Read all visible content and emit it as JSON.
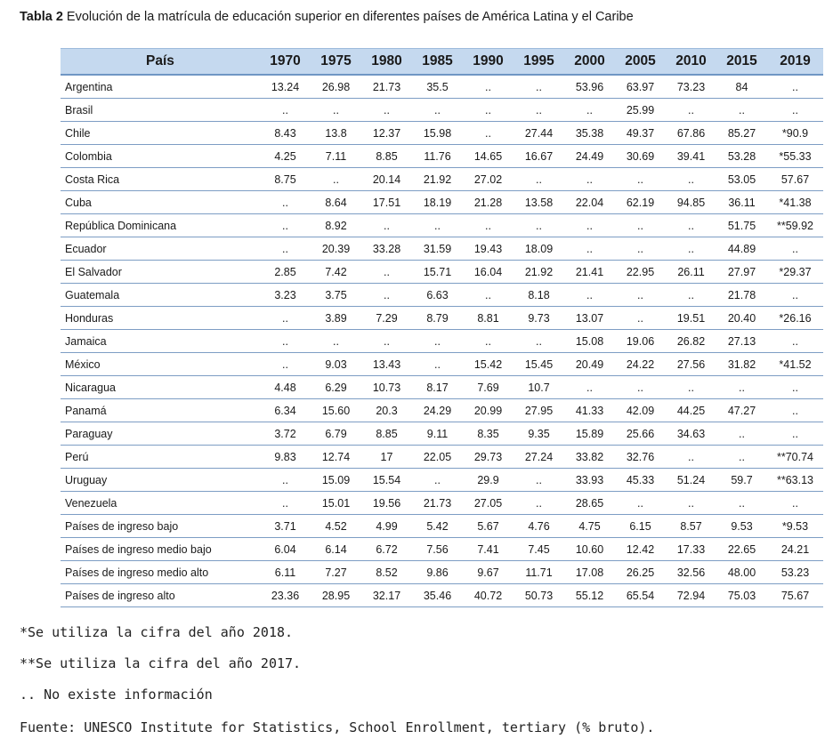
{
  "caption": {
    "label": "Tabla 2",
    "text": " Evolución de la matrícula de educación superior en diferentes países de América Latina y el Caribe"
  },
  "table": {
    "headers": [
      "País",
      "1970",
      "1975",
      "1980",
      "1985",
      "1990",
      "1995",
      "2000",
      "2005",
      "2010",
      "2015",
      "2019"
    ],
    "rows": [
      [
        "Argentina",
        "13.24",
        "26.98",
        "21.73",
        "35.5",
        "..",
        "..",
        "53.96",
        "63.97",
        "73.23",
        "84",
        ".."
      ],
      [
        "Brasil",
        "..",
        "..",
        "..",
        "..",
        "..",
        "..",
        "..",
        "25.99",
        "..",
        "..",
        ".."
      ],
      [
        "Chile",
        "8.43",
        "13.8",
        "12.37",
        "15.98",
        "..",
        "27.44",
        "35.38",
        "49.37",
        "67.86",
        "85.27",
        "*90.9"
      ],
      [
        "Colombia",
        "4.25",
        "7.11",
        "8.85",
        "11.76",
        "14.65",
        "16.67",
        "24.49",
        "30.69",
        "39.41",
        "53.28",
        "*55.33"
      ],
      [
        "Costa Rica",
        "8.75",
        "..",
        "20.14",
        "21.92",
        "27.02",
        "..",
        "..",
        "..",
        "..",
        "53.05",
        "57.67"
      ],
      [
        "Cuba",
        "..",
        "8.64",
        "17.51",
        "18.19",
        "21.28",
        "13.58",
        "22.04",
        "62.19",
        "94.85",
        "36.11",
        "*41.38"
      ],
      [
        "República Dominicana",
        "..",
        "8.92",
        "..",
        "..",
        "..",
        "..",
        "..",
        "..",
        "..",
        "51.75",
        "**59.92"
      ],
      [
        "Ecuador",
        "..",
        "20.39",
        "33.28",
        "31.59",
        "19.43",
        "18.09",
        "..",
        "..",
        "..",
        "44.89",
        ".."
      ],
      [
        "El Salvador",
        "2.85",
        "7.42",
        "..",
        "15.71",
        "16.04",
        "21.92",
        "21.41",
        "22.95",
        "26.11",
        "27.97",
        "*29.37"
      ],
      [
        "Guatemala",
        "3.23",
        "3.75",
        "..",
        "6.63",
        "..",
        "8.18",
        "..",
        "..",
        "..",
        "21.78",
        ".."
      ],
      [
        "Honduras",
        "..",
        "3.89",
        "7.29",
        "8.79",
        "8.81",
        "9.73",
        "13.07",
        "..",
        "19.51",
        "20.40",
        "*26.16"
      ],
      [
        "Jamaica",
        "..",
        "..",
        "..",
        "..",
        "..",
        "..",
        "15.08",
        "19.06",
        "26.82",
        "27.13",
        ".."
      ],
      [
        "México",
        "..",
        "9.03",
        "13.43",
        "..",
        "15.42",
        "15.45",
        "20.49",
        "24.22",
        "27.56",
        "31.82",
        "*41.52"
      ],
      [
        "Nicaragua",
        "4.48",
        "6.29",
        "10.73",
        "8.17",
        "7.69",
        "10.7",
        "..",
        "..",
        "..",
        "..",
        ".."
      ],
      [
        "Panamá",
        "6.34",
        "15.60",
        "20.3",
        "24.29",
        "20.99",
        "27.95",
        "41.33",
        "42.09",
        "44.25",
        "47.27",
        ".."
      ],
      [
        "Paraguay",
        "3.72",
        "6.79",
        "8.85",
        "9.11",
        "8.35",
        "9.35",
        "15.89",
        "25.66",
        "34.63",
        "..",
        ".."
      ],
      [
        "Perú",
        "9.83",
        "12.74",
        "17",
        "22.05",
        "29.73",
        "27.24",
        "33.82",
        "32.76",
        "..",
        "..",
        "**70.74"
      ],
      [
        "Uruguay",
        "..",
        "15.09",
        "15.54",
        "..",
        "29.9",
        "..",
        "33.93",
        "45.33",
        "51.24",
        "59.7",
        "**63.13"
      ],
      [
        "Venezuela",
        "..",
        "15.01",
        "19.56",
        "21.73",
        "27.05",
        "..",
        "28.65",
        "..",
        "..",
        "..",
        ".."
      ],
      [
        "Países de ingreso bajo",
        "3.71",
        "4.52",
        "4.99",
        "5.42",
        "5.67",
        "4.76",
        "4.75",
        "6.15",
        "8.57",
        "9.53",
        "*9.53"
      ],
      [
        "Países de ingreso medio bajo",
        "6.04",
        "6.14",
        "6.72",
        "7.56",
        "7.41",
        "7.45",
        "10.60",
        "12.42",
        "17.33",
        "22.65",
        "24.21"
      ],
      [
        "Países de ingreso medio alto",
        "6.11",
        "7.27",
        "8.52",
        "9.86",
        "9.67",
        "11.71",
        "17.08",
        "26.25",
        "32.56",
        "48.00",
        "53.23"
      ],
      [
        "Países de ingreso alto",
        "23.36",
        "28.95",
        "32.17",
        "35.46",
        "40.72",
        "50.73",
        "55.12",
        "65.54",
        "72.94",
        "75.03",
        "75.67"
      ]
    ]
  },
  "notes": [
    "*Se utiliza la cifra del año 2018.",
    "**Se utiliza la cifra del año 2017.",
    ".. No existe información",
    "Fuente: UNESCO Institute for Statistics, School Enrollment, tertiary (% bruto)."
  ]
}
